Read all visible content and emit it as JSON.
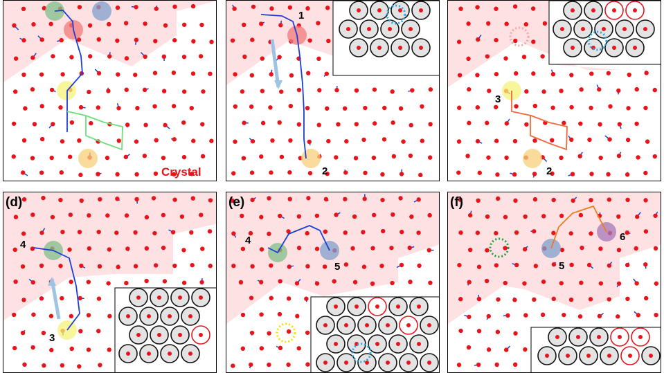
{
  "panels": [
    {
      "id": "a",
      "label": "",
      "annotation": "Crystal",
      "markers": []
    },
    {
      "id": "b",
      "label": "",
      "markers": [
        "1",
        "2"
      ]
    },
    {
      "id": "c",
      "label": "",
      "markers": [
        "3",
        "2"
      ]
    },
    {
      "id": "d",
      "label": "(d)",
      "markers": [
        "4",
        "3"
      ]
    },
    {
      "id": "e",
      "label": "(e)",
      "markers": [
        "4",
        "5"
      ]
    },
    {
      "id": "f",
      "label": "(f)",
      "markers": [
        "5",
        "6"
      ]
    }
  ],
  "colors": {
    "crystal_region": "#fde1e3",
    "particle": "#e8141c",
    "green": "#7fbf8a",
    "blue": "#7f9fcc",
    "red": "#f27a7a",
    "yellow": "#f5f37a",
    "orange": "#f7cf7a",
    "purple": "#a577b8",
    "arrow": "#9fc3e3",
    "inset_disk": "#e3e3e3"
  }
}
